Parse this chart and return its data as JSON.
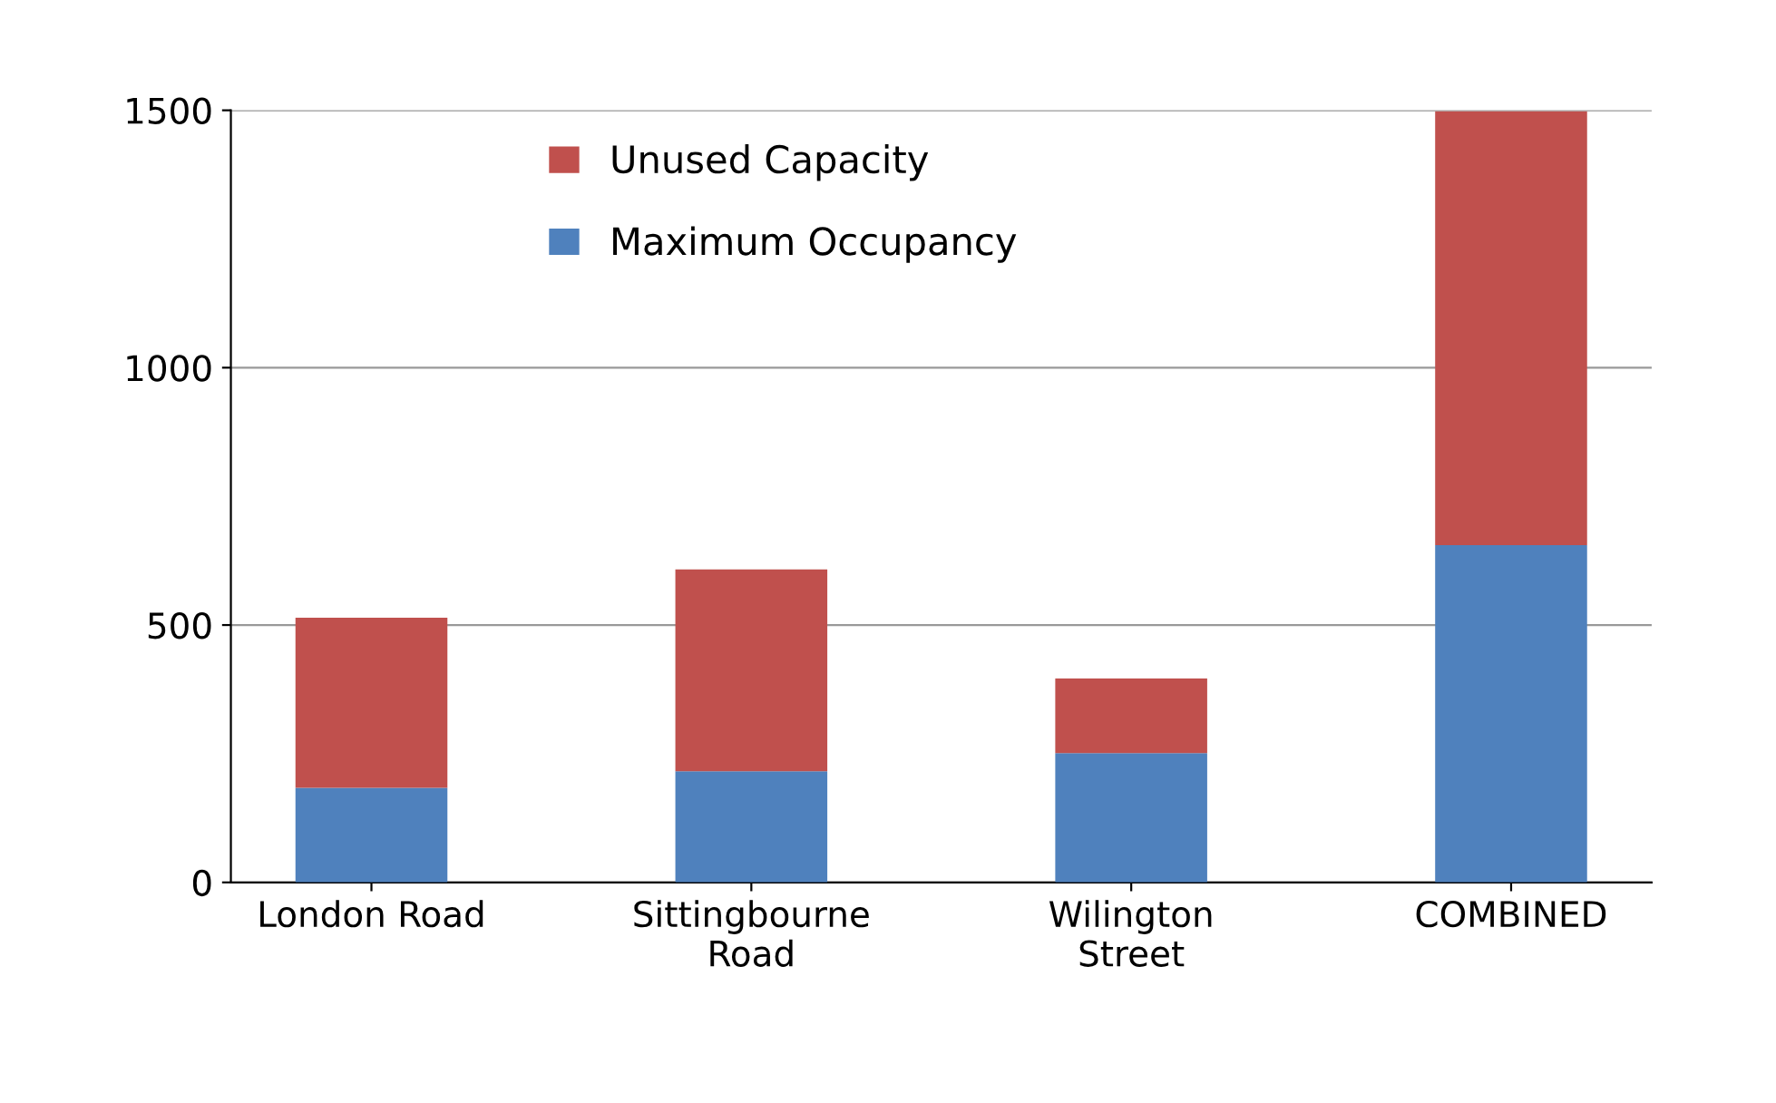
{
  "chart_data": {
    "type": "bar",
    "stacked": true,
    "categories": [
      "London Road",
      "Sittingbourne\nRoad",
      "Wilington\nStreet",
      "COMBINED"
    ],
    "series": [
      {
        "name": "Maximum Occupancy",
        "color": "#4f81bd",
        "values": [
          184,
          216,
          251,
          655
        ]
      },
      {
        "name": "Unused Capacity",
        "color": "#c0504d",
        "values": [
          330,
          392,
          145,
          843
        ]
      }
    ],
    "ylim": [
      0,
      1500
    ],
    "yticks": [
      0,
      500,
      1000,
      1500
    ],
    "grid": "y",
    "legend": "top left"
  }
}
